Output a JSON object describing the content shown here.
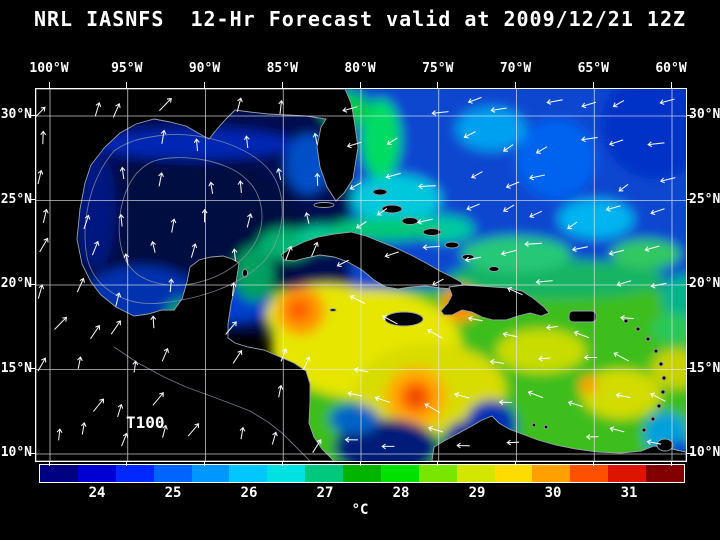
{
  "title": "NRL IASNFS  12-Hr Forecast valid at 2009/12/21 12Z",
  "map": {
    "lon_labels": [
      "100°W",
      "95°W",
      "90°W",
      "85°W",
      "80°W",
      "75°W",
      "70°W",
      "65°W",
      "60°W"
    ],
    "lat_labels": [
      "30°N",
      "25°N",
      "20°N",
      "15°N",
      "10°N"
    ],
    "annotation": "T100"
  },
  "colorbar": {
    "unit": "°C",
    "ticks": [
      "24",
      "25",
      "26",
      "27",
      "28",
      "29",
      "30",
      "31"
    ],
    "colors": [
      "#000082",
      "#0000d2",
      "#0028ff",
      "#0064ff",
      "#0096ff",
      "#00c8ff",
      "#00e1e1",
      "#00c87d",
      "#00b400",
      "#00e100",
      "#78e600",
      "#d2e600",
      "#ffdc00",
      "#ffa000",
      "#ff5000",
      "#dc1400",
      "#820000"
    ]
  },
  "chart_data": {
    "type": "heatmap",
    "title": "NRL IASNFS 12-Hr Forecast valid at 2009/12/21 12Z",
    "variable": "Sea temperature (°C) with surface vector arrows, annotation T100",
    "region": {
      "lon_range_deg_w": [
        100,
        60
      ],
      "lat_range_deg_n": [
        10,
        30
      ]
    },
    "colorbar_range_c": [
      24,
      31
    ],
    "legend_position": "bottom",
    "features": [
      "Gulf of Mexico cold (~23-25°C, dark navy) with gray basin contours",
      "Western/central Caribbean warm (~27-28°C yellow) with ~29°C orange-red eddies near 77°W 13.5°N and south of eastern Cuba",
      "Atlantic north of Greater Antilles ~25-26.5°C (blue/cyan with green patches)",
      "Cool coastal patches off Guajira and Panama (~24-25°C)",
      "Land masses masked black with gray coastlines"
    ]
  }
}
